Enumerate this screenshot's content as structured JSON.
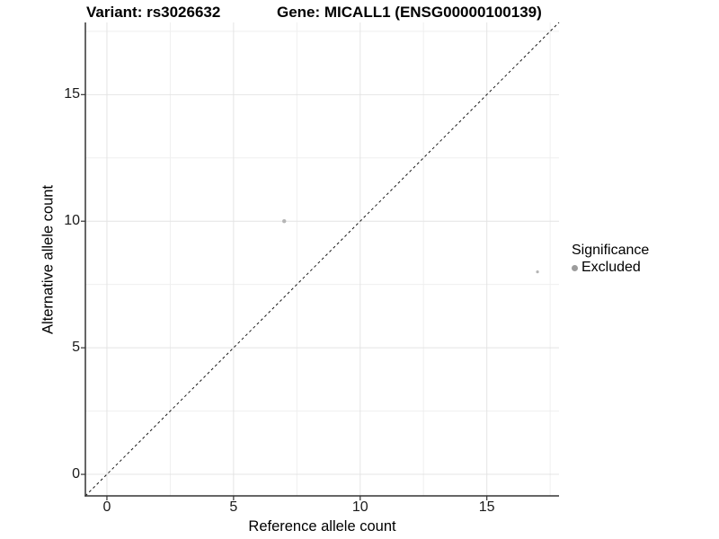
{
  "header": {
    "title_left": "Variant: rs3026632",
    "title_right": "Gene: MICALL1 (ENSG00000100139)"
  },
  "chart_data": {
    "type": "scatter",
    "title_left": "Variant: rs3026632",
    "title_right": "Gene: MICALL1 (ENSG00000100139)",
    "xlabel": "Reference allele count",
    "ylabel": "Alternative allele count",
    "xlim": [
      -0.85,
      17.85
    ],
    "ylim": [
      -0.85,
      17.85
    ],
    "x_ticks": [
      0,
      5,
      10,
      15
    ],
    "y_ticks": [
      0,
      5,
      10,
      15
    ],
    "x_minor_ticks": [
      2.5,
      7.5,
      12.5,
      17.5
    ],
    "y_minor_ticks": [
      2.5,
      7.5,
      12.5,
      17.5
    ],
    "grid": "major and minor, light gray, white background",
    "identity_line": {
      "type": "dashed",
      "slope": 1,
      "intercept": 0,
      "color": "#1a1a1a"
    },
    "series": [
      {
        "name": "Excluded",
        "color": "#b5b5b5",
        "points": [
          {
            "x": 7,
            "y": 10,
            "radius": 2.2
          },
          {
            "x": 17,
            "y": 8,
            "radius": 1.6
          }
        ]
      }
    ],
    "legend": {
      "position": "right",
      "title": "Significance",
      "items": [
        {
          "label": "Excluded",
          "color": "#9c9c9c"
        }
      ]
    },
    "colors": {
      "axis_line": "#333333",
      "grid_major": "#e4e4e4",
      "grid_minor": "#efefef",
      "point": "#b5b5b5",
      "text": "#000000"
    }
  }
}
